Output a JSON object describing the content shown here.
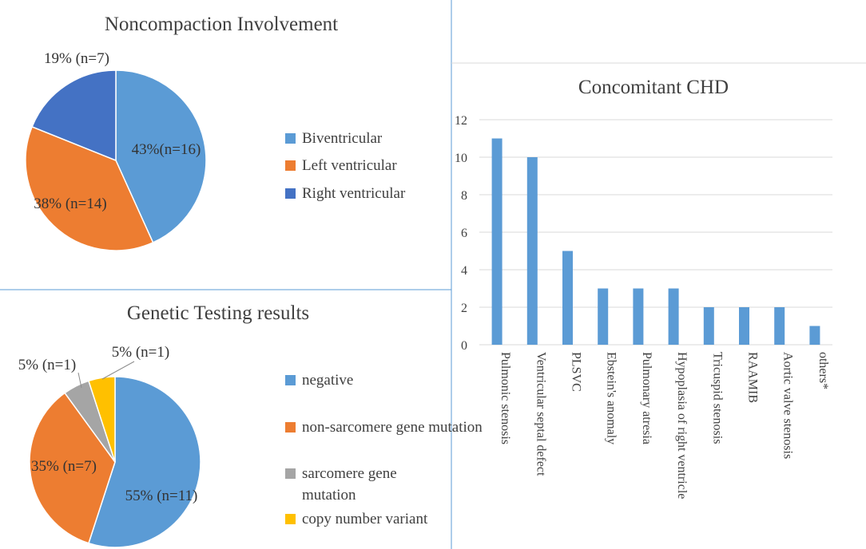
{
  "chart_data": [
    {
      "type": "pie",
      "title": "Noncompaction Involvement",
      "categories": [
        "Biventricular",
        "Left ventricular",
        "Right ventricular"
      ],
      "values": [
        16,
        14,
        7
      ],
      "labels": [
        "43%(n=16)",
        "38% (n=14)",
        "19% (n=7)"
      ],
      "colors": [
        "#5b9bd5",
        "#ed7d31",
        "#4472c4"
      ],
      "legend_position": "right"
    },
    {
      "type": "pie",
      "title": "Genetic Testing results",
      "categories": [
        "negative",
        "non-sarcomere gene mutation",
        "sarcomere gene mutation",
        "copy number variant"
      ],
      "values": [
        11,
        7,
        1,
        1
      ],
      "labels": [
        "55% (n=11)",
        "35% (n=7)",
        "5% (n=1)",
        "5% (n=1)"
      ],
      "colors": [
        "#5b9bd5",
        "#ed7d31",
        "#a5a5a5",
        "#ffc000"
      ],
      "legend_position": "right"
    },
    {
      "type": "bar",
      "title": "Concomitant CHD",
      "categories": [
        "Pulmonic stenosis",
        "Ventricular septal defect",
        "PLSVC",
        "Ebstein's anomaly",
        "Pulmonary atresia",
        "Hypoplasia of right ventricle",
        "Tricuspid stenosis",
        "RAAMIB",
        "Aortic valve stenosis",
        "others*"
      ],
      "values": [
        11,
        10,
        5,
        3,
        3,
        3,
        2,
        2,
        2,
        1
      ],
      "ylim": [
        0,
        12
      ],
      "yticks": [
        "0",
        "2",
        "4",
        "6",
        "8",
        "10",
        "12"
      ],
      "grid": true,
      "color": "#5b9bd5"
    }
  ]
}
